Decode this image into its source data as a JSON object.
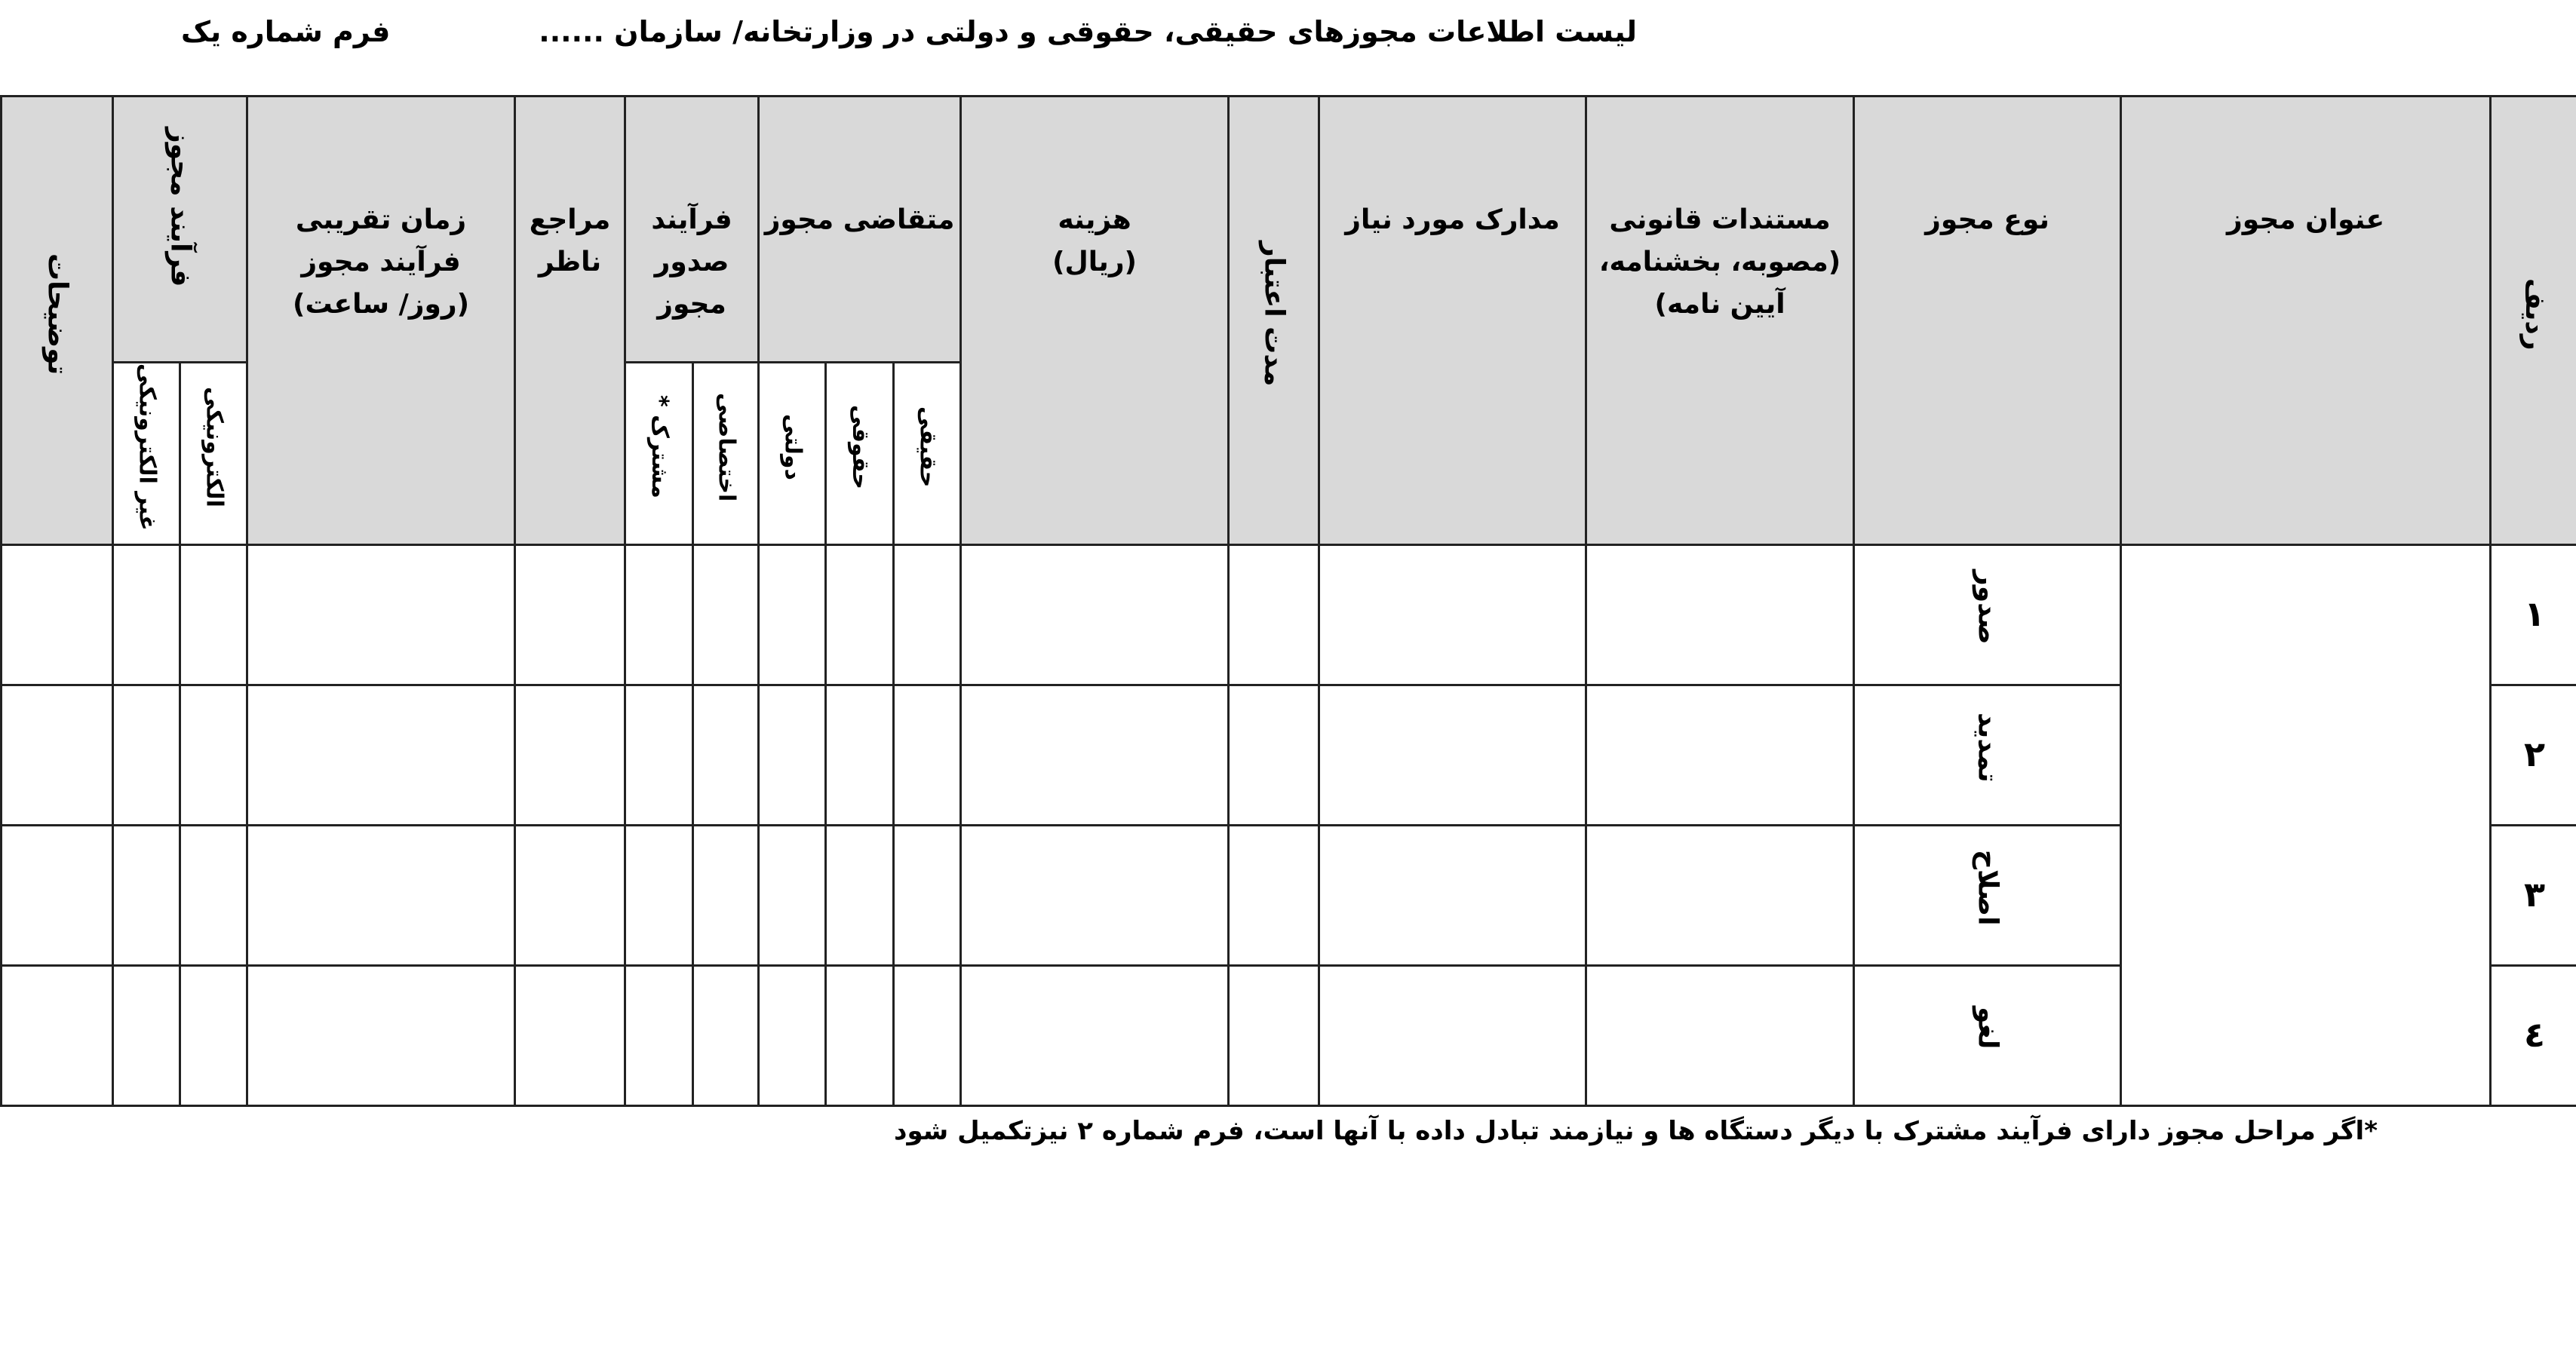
{
  "header": {
    "title": "لیست اطلاعات مجوزهای حقیقی، حقوقی و دولتی در وزارتخانه/ سازمان ......",
    "form_label": "فرم شماره یک"
  },
  "table": {
    "columns": {
      "row": "ردیف",
      "title": "عنوان مجوز",
      "type": "نوع مجوز",
      "legal_docs": [
        "مستندات قانونی",
        "(مصوبه، بخشنامه،",
        "آیین نامه)"
      ],
      "required_docs": "مدارک مورد نیاز",
      "validity": "مدت اعتبار",
      "cost": [
        "هزینه",
        "(ریال)"
      ],
      "applicant": {
        "label": "متقاضی مجوز",
        "subs": [
          "حقیقی",
          "حقوقی",
          "دولتی"
        ]
      },
      "issue_process": {
        "label": [
          "فرآیند",
          "صدور",
          "مجوز"
        ],
        "subs": [
          "اختصاصی",
          "مشترک *"
        ]
      },
      "supervisor": [
        "مراجع",
        "ناظر"
      ],
      "time": [
        "زمان تقریبی",
        "فرآیند مجوز",
        "(روز/ ساعت)"
      ],
      "process": {
        "label": "فرآیند مجوز",
        "subs": [
          "الکترونیکی",
          "غیر الکترونیکی"
        ]
      },
      "notes": "توضیحات"
    },
    "rows": [
      {
        "num": "۱",
        "type": "صدور"
      },
      {
        "num": "۲",
        "type": "تمدید"
      },
      {
        "num": "۳",
        "type": "اصلاح"
      },
      {
        "num": "٤",
        "type": "لغو"
      }
    ]
  },
  "footnote": "*اگر مراحل مجوز دارای فرآیند مشترک با دیگر دستگاه ها و نیازمند تبادل داده با آنها است، فرم شماره ۲ نیزتکمیل شود",
  "colors": {
    "header_fill": "#d9d9d9",
    "border": "#222222"
  }
}
